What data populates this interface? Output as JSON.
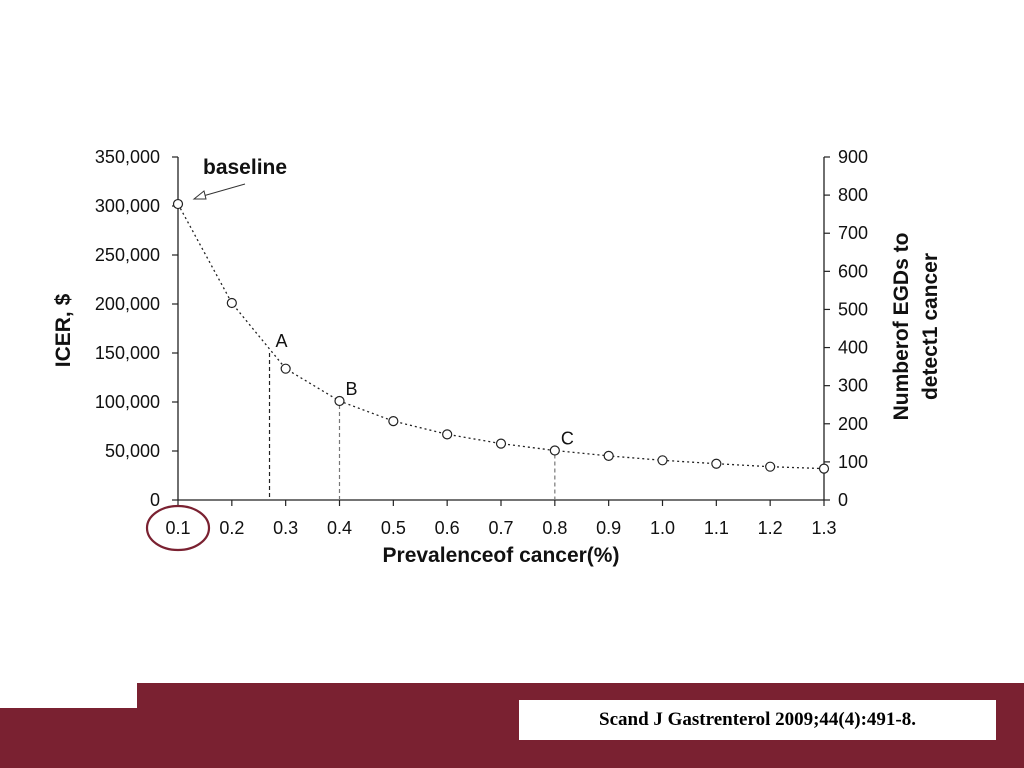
{
  "chart_data": {
    "type": "line",
    "x": [
      0.1,
      0.2,
      0.3,
      0.4,
      0.5,
      0.6,
      0.7,
      0.8,
      0.9,
      1.0,
      1.1,
      1.2,
      1.3
    ],
    "series": [
      {
        "values": [
          302000,
          201000,
          134000,
          101000,
          80500,
          67000,
          57500,
          50500,
          45000,
          40500,
          37000,
          34000,
          32000
        ]
      }
    ],
    "xlabel": "Prevalenceof cancer(%)",
    "ylabel": "ICER, $",
    "y2label": [
      "Numberof EGDs to",
      "detect1 cancer"
    ],
    "xticks": [
      "0.1",
      "0.2",
      "0.3",
      "0.4",
      "0.5",
      "0.6",
      "0.7",
      "0.8",
      "0.9",
      "1.0",
      "1.1",
      "1.2",
      "1.3"
    ],
    "yticks": [
      "0",
      "50,000",
      "100,000",
      "150,000",
      "200,000",
      "250,000",
      "300,000",
      "350,000"
    ],
    "y2ticks": [
      "0",
      "100",
      "200",
      "300",
      "400",
      "500",
      "600",
      "700",
      "800",
      "900"
    ],
    "xlim": [
      0.1,
      1.3
    ],
    "ylim": [
      0,
      350000
    ],
    "y2lim": [
      0,
      900
    ],
    "grid": false,
    "annotations": [
      {
        "label": "baseline",
        "x": 0.1,
        "y": 302000
      },
      {
        "label": "A",
        "x": 0.27,
        "y": 150000
      },
      {
        "label": "B",
        "x": 0.4,
        "y": 101000
      },
      {
        "label": "C",
        "x": 0.8,
        "y": 50500
      }
    ],
    "highlighted_tick": "0.1",
    "highlight_color": "#7a2131"
  },
  "citation": "Scand J Gastrenterol 2009;44(4):491-8.",
  "colors": {
    "footer": "#7a2131",
    "line": "#222222"
  }
}
